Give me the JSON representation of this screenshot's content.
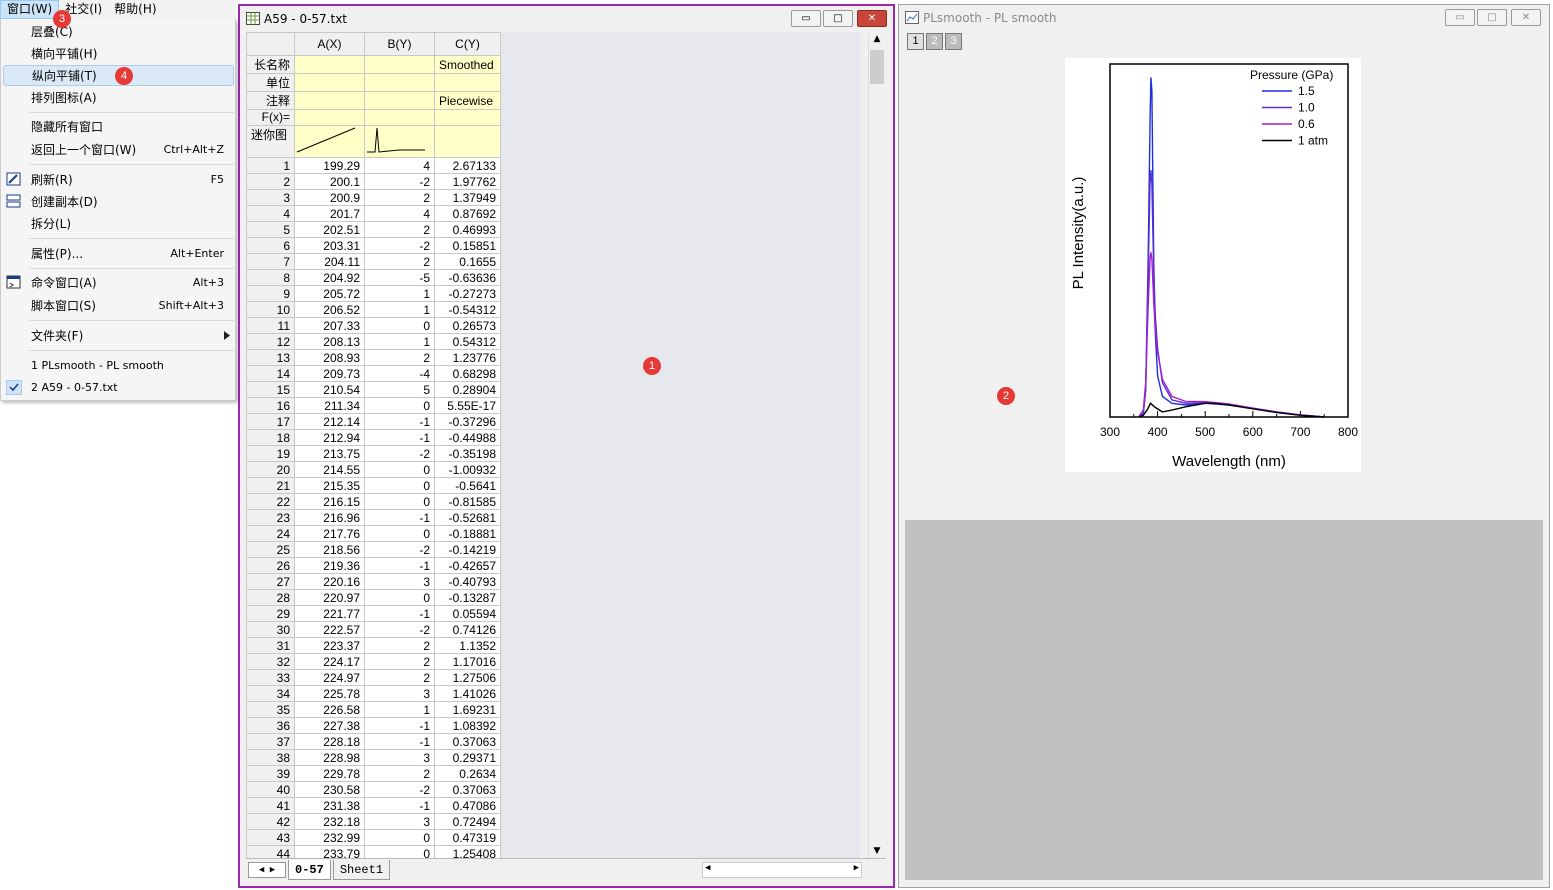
{
  "menubar": {
    "items": [
      "窗口(W)",
      "社交(I)",
      "帮助(H)"
    ]
  },
  "window_menu": {
    "items": [
      {
        "label": "层叠(C)",
        "shortcut": ""
      },
      {
        "label": "横向平铺(H)",
        "shortcut": ""
      },
      {
        "label": "纵向平铺(T)",
        "shortcut": ""
      },
      {
        "label": "排列图标(A)",
        "shortcut": ""
      },
      {
        "label": "隐藏所有窗口",
        "shortcut": ""
      },
      {
        "label": "返回上一个窗口(W)",
        "shortcut": "Ctrl+Alt+Z"
      },
      {
        "label": "刷新(R)",
        "shortcut": "F5"
      },
      {
        "label": "创建副本(D)",
        "shortcut": ""
      },
      {
        "label": "拆分(L)",
        "shortcut": ""
      },
      {
        "label": "属性(P)...",
        "shortcut": "Alt+Enter"
      },
      {
        "label": "命令窗口(A)",
        "shortcut": "Alt+3"
      },
      {
        "label": "脚本窗口(S)",
        "shortcut": "Shift+Alt+3"
      },
      {
        "label": "文件夹(F)",
        "shortcut": ""
      },
      {
        "label": "1 PLsmooth - PL smooth",
        "shortcut": ""
      },
      {
        "label": "2 A59 - 0-57.txt",
        "shortcut": ""
      }
    ]
  },
  "badges": [
    "1",
    "2",
    "3",
    "4"
  ],
  "worksheet": {
    "title": "A59 - 0-57.txt",
    "columns": [
      "A(X)",
      "B(Y)",
      "C(Y)"
    ],
    "meta_labels": [
      "长名称",
      "单位",
      "注释",
      "F(x)=",
      "迷你图"
    ],
    "meta_c": [
      "Smoothed",
      "",
      "Piecewise",
      "",
      ""
    ],
    "rows": [
      [
        "1",
        "199.29",
        "4",
        "2.67133"
      ],
      [
        "2",
        "200.1",
        "-2",
        "1.97762"
      ],
      [
        "3",
        "200.9",
        "2",
        "1.37949"
      ],
      [
        "4",
        "201.7",
        "4",
        "0.87692"
      ],
      [
        "5",
        "202.51",
        "2",
        "0.46993"
      ],
      [
        "6",
        "203.31",
        "-2",
        "0.15851"
      ],
      [
        "7",
        "204.11",
        "2",
        "0.1655"
      ],
      [
        "8",
        "204.92",
        "-5",
        "-0.63636"
      ],
      [
        "9",
        "205.72",
        "1",
        "-0.27273"
      ],
      [
        "10",
        "206.52",
        "1",
        "-0.54312"
      ],
      [
        "11",
        "207.33",
        "0",
        "0.26573"
      ],
      [
        "12",
        "208.13",
        "1",
        "0.54312"
      ],
      [
        "13",
        "208.93",
        "2",
        "1.23776"
      ],
      [
        "14",
        "209.73",
        "-4",
        "0.68298"
      ],
      [
        "15",
        "210.54",
        "5",
        "0.28904"
      ],
      [
        "16",
        "211.34",
        "0",
        "5.55E-17"
      ],
      [
        "17",
        "212.14",
        "-1",
        "-0.37296"
      ],
      [
        "18",
        "212.94",
        "-1",
        "-0.44988"
      ],
      [
        "19",
        "213.75",
        "-2",
        "-0.35198"
      ],
      [
        "20",
        "214.55",
        "0",
        "-1.00932"
      ],
      [
        "21",
        "215.35",
        "0",
        "-0.5641"
      ],
      [
        "22",
        "216.15",
        "0",
        "-0.81585"
      ],
      [
        "23",
        "216.96",
        "-1",
        "-0.52681"
      ],
      [
        "24",
        "217.76",
        "0",
        "-0.18881"
      ],
      [
        "25",
        "218.56",
        "-2",
        "-0.14219"
      ],
      [
        "26",
        "219.36",
        "-1",
        "-0.42657"
      ],
      [
        "27",
        "220.16",
        "3",
        "-0.40793"
      ],
      [
        "28",
        "220.97",
        "0",
        "-0.13287"
      ],
      [
        "29",
        "221.77",
        "-1",
        "0.05594"
      ],
      [
        "30",
        "222.57",
        "-2",
        "0.74126"
      ],
      [
        "31",
        "223.37",
        "2",
        "1.1352"
      ],
      [
        "32",
        "224.17",
        "2",
        "1.17016"
      ],
      [
        "33",
        "224.97",
        "2",
        "1.27506"
      ],
      [
        "34",
        "225.78",
        "3",
        "1.41026"
      ],
      [
        "35",
        "226.58",
        "1",
        "1.69231"
      ],
      [
        "36",
        "227.38",
        "-1",
        "1.08392"
      ],
      [
        "37",
        "228.18",
        "-1",
        "0.37063"
      ],
      [
        "38",
        "228.98",
        "3",
        "0.29371"
      ],
      [
        "39",
        "229.78",
        "2",
        "0.2634"
      ],
      [
        "40",
        "230.58",
        "-2",
        "0.37063"
      ],
      [
        "41",
        "231.38",
        "-1",
        "0.47086"
      ],
      [
        "42",
        "232.18",
        "3",
        "0.72494"
      ],
      [
        "43",
        "232.99",
        "0",
        "0.47319"
      ],
      [
        "44",
        "233.79",
        "0",
        "1.25408"
      ]
    ],
    "tabs": [
      "0-57",
      "Sheet1"
    ]
  },
  "graph": {
    "title": "PLsmooth - PL smooth",
    "layers": [
      "1",
      "2",
      "3"
    ]
  },
  "chart_data": {
    "type": "line",
    "xlabel": "Wavelength (nm)",
    "ylabel": "PL Intensity(a.u.)",
    "xlim": [
      300,
      800
    ],
    "xticks": [
      "300",
      "400",
      "500",
      "600",
      "700",
      "800"
    ],
    "ylim": [
      0,
      1
    ],
    "legend_title": "Pressure (GPa)",
    "legend_position": "top-right",
    "series": [
      {
        "name": "1.5",
        "color": "#1f2fe0",
        "x": [
          360,
          370,
          375,
          380,
          384,
          386,
          388,
          390,
          392,
          395,
          400,
          410,
          430,
          460,
          500,
          550,
          600,
          650,
          700,
          750
        ],
        "y": [
          0,
          0.01,
          0.08,
          0.45,
          0.85,
          0.99,
          0.95,
          0.7,
          0.45,
          0.25,
          0.12,
          0.06,
          0.04,
          0.035,
          0.04,
          0.035,
          0.025,
          0.015,
          0.006,
          0
        ]
      },
      {
        "name": "1.0",
        "color": "#5a2fd0",
        "x": [
          360,
          370,
          375,
          380,
          384,
          386,
          388,
          390,
          392,
          395,
          400,
          410,
          430,
          460,
          500,
          550,
          600,
          650,
          700,
          750
        ],
        "y": [
          0,
          0.01,
          0.08,
          0.4,
          0.68,
          0.72,
          0.68,
          0.55,
          0.42,
          0.3,
          0.2,
          0.1,
          0.05,
          0.04,
          0.042,
          0.036,
          0.025,
          0.015,
          0.006,
          0
        ]
      },
      {
        "name": "0.6",
        "color": "#a01fd0",
        "x": [
          360,
          370,
          375,
          380,
          384,
          386,
          388,
          390,
          392,
          395,
          400,
          410,
          430,
          460,
          500,
          550,
          600,
          650,
          700,
          750
        ],
        "y": [
          0,
          0.02,
          0.1,
          0.32,
          0.46,
          0.48,
          0.46,
          0.4,
          0.33,
          0.26,
          0.19,
          0.11,
          0.06,
          0.045,
          0.045,
          0.038,
          0.026,
          0.015,
          0.006,
          0
        ]
      },
      {
        "name": "1 atm",
        "color": "#000000",
        "x": [
          360,
          370,
          378,
          385,
          395,
          410,
          430,
          460,
          500,
          520,
          550,
          600,
          650,
          700,
          750
        ],
        "y": [
          0,
          0.005,
          0.02,
          0.04,
          0.028,
          0.015,
          0.02,
          0.03,
          0.04,
          0.04,
          0.035,
          0.024,
          0.013,
          0.005,
          0
        ]
      }
    ]
  }
}
